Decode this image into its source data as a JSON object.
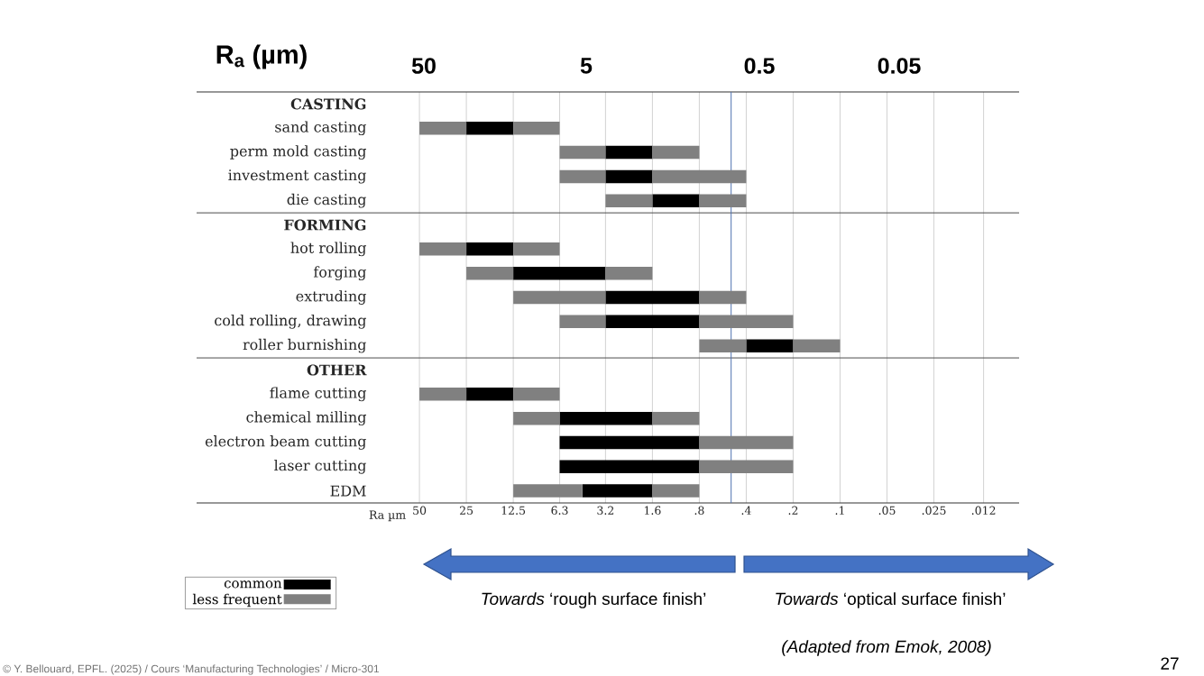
{
  "chart_data": {
    "type": "bar",
    "orientation": "horizontal",
    "xlabel": "Ra µm",
    "categories": [
      "CASTING",
      "sand casting",
      "perm mold casting",
      "investment casting",
      "die casting",
      "FORMING",
      "hot rolling",
      "forging",
      "extruding",
      "cold rolling, drawing",
      "roller burnishing",
      "OTHER",
      "flame cutting",
      "chemical milling",
      "electron beam cutting",
      "laser cutting",
      "EDM"
    ],
    "series": [
      {
        "name": "common",
        "color": "#000000",
        "base": [
          null,
          12.5,
          1.6,
          1.6,
          0.8,
          null,
          12.5,
          3.2,
          0.8,
          0.8,
          0.2,
          null,
          12.5,
          1.6,
          0.8,
          0.8,
          1.6
        ],
        "values": [
          null,
          12.5,
          1.6,
          1.6,
          0.8,
          null,
          12.5,
          9.3,
          2.4,
          2.4,
          0.2,
          null,
          12.5,
          4.7,
          5.5,
          5.5,
          2.9
        ]
      },
      {
        "name": "less frequent",
        "color": "#808080",
        "base": [
          null,
          25,
          3.2,
          3.2,
          1.6,
          null,
          25,
          12.5,
          3.2,
          3.2,
          0.4,
          null,
          25,
          6.3,
          null,
          null,
          4.5
        ],
        "values": [
          null,
          25,
          3.1,
          3.1,
          1.6,
          null,
          25,
          12.5,
          9.3,
          3.1,
          0.4,
          null,
          25,
          6.2,
          null,
          null,
          8
        ]
      },
      {
        "color": "#808080",
        "base": [
          null,
          6.3,
          0.8,
          0.4,
          0.4,
          null,
          6.3,
          1.6,
          0.4,
          0.2,
          0.1,
          null,
          6.3,
          0.8,
          0.2,
          0.2,
          0.8
        ],
        "values": [
          null,
          6.2,
          0.8,
          1.2,
          0.4,
          null,
          6.2,
          1.6,
          0.4,
          0.6,
          0.1,
          null,
          6.2,
          0.8,
          0.6,
          0.6,
          0.8
        ]
      }
    ],
    "log": "x",
    "xlim": [
      1345,
      0.0071
    ],
    "xticks": [
      50,
      25,
      12.5,
      6.3,
      3.2,
      1.6,
      {
        "value": 0.8,
        "label": ".8"
      },
      {
        "value": 0.4,
        "label": ".4"
      },
      {
        "value": 0.2,
        "label": ".2"
      },
      {
        "value": 0.1,
        "label": ".1"
      },
      {
        "value": 0.05,
        "label": ".05"
      },
      {
        "value": 0.025,
        "label": ".025"
      },
      {
        "value": 0.012,
        "label": ".012"
      }
    ],
    "grid": "x",
    "legend": "bottom left",
    "ref_lines": [
      {
        "axis": "x",
        "value": 0.5,
        "color": "#4f72b0"
      }
    ],
    "annotations": [
      "R$_{a}$ (µm)",
      "50",
      "5",
      "0.5",
      "0.05",
      "*Towards* ‘rough surface finish’",
      "*Towards* ‘optical surface finish’",
      "(Adapted from  Emok, 2008)",
      "© Y. Bellouard, EPFL. (2025) / Cours ‘Manufacturing Technologies’ / Micro-301",
      "27"
    ]
  }
}
